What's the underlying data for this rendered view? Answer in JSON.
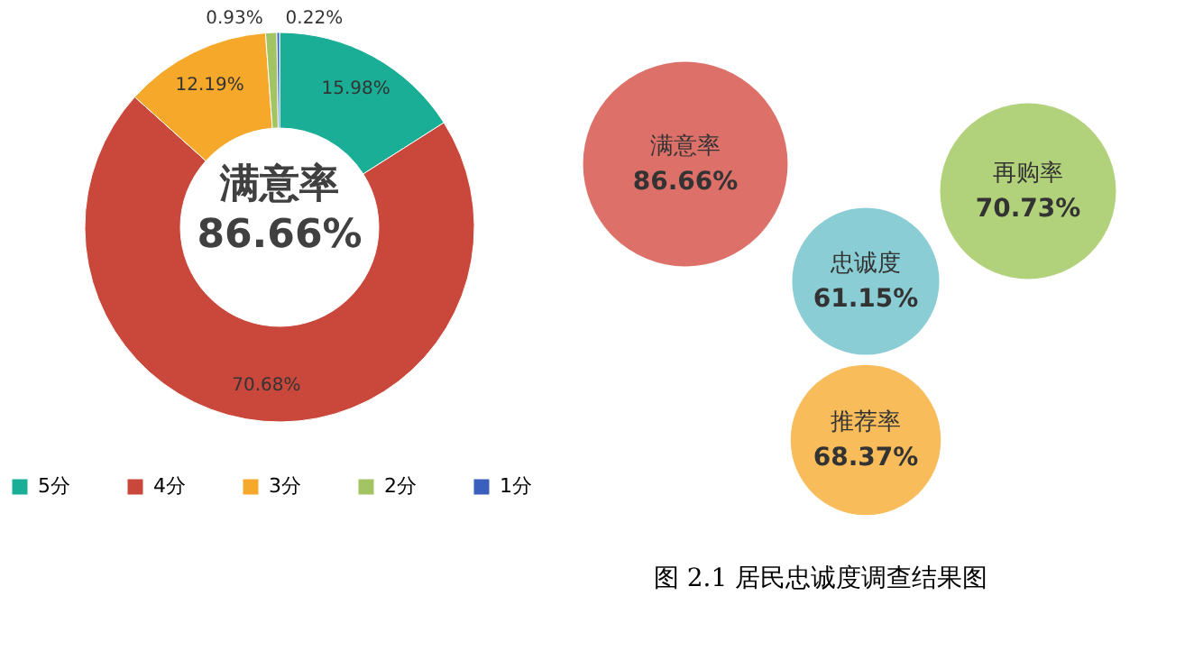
{
  "chart_data": [
    {
      "type": "donut",
      "categories": [
        "5分",
        "4分",
        "3分",
        "2分",
        "1分"
      ],
      "values": [
        15.98,
        70.68,
        12.19,
        0.93,
        0.22
      ],
      "colors": [
        "#1aae96",
        "#c9483b",
        "#f5a82a",
        "#a3c463",
        "#3a5fbd"
      ],
      "value_labels": [
        "15.98%",
        "70.68%",
        "12.19%",
        "0.93%",
        "0.22%"
      ],
      "legend": "bottom",
      "annotations": [
        "满意率",
        "86.66%"
      ]
    },
    {
      "type": "other",
      "categories": [
        "满意率",
        "忠诚度",
        "再购率",
        "推荐率"
      ],
      "values": [
        86.66,
        61.15,
        70.73,
        68.37
      ],
      "colors": [
        "#d9625a",
        "#7ec8cf",
        "#a9cd6b",
        "#f7b548"
      ],
      "value_labels": [
        "86.66%",
        "61.15%",
        "70.73%",
        "68.37%"
      ],
      "annotations": [
        "图 2.1 居民忠诚度调查结果图"
      ]
    }
  ]
}
